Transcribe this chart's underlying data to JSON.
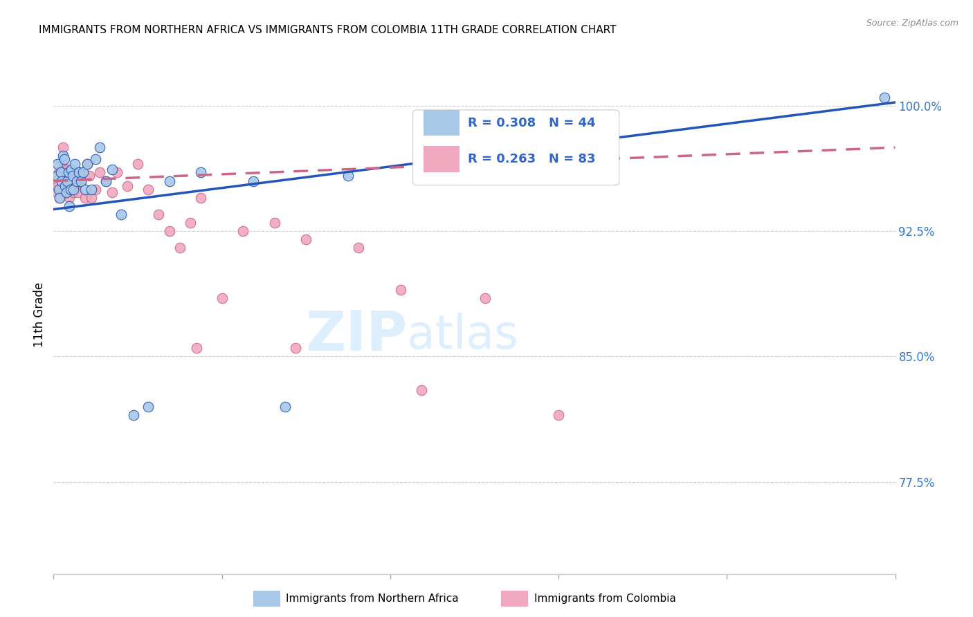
{
  "title": "IMMIGRANTS FROM NORTHERN AFRICA VS IMMIGRANTS FROM COLOMBIA 11TH GRADE CORRELATION CHART",
  "source": "Source: ZipAtlas.com",
  "ylabel": "11th Grade",
  "yticks": [
    77.5,
    85.0,
    92.5,
    100.0
  ],
  "ytick_labels": [
    "77.5%",
    "85.0%",
    "92.5%",
    "100.0%"
  ],
  "xlim": [
    0.0,
    40.0
  ],
  "ylim": [
    72.0,
    103.0
  ],
  "color_blue": "#a8c8e8",
  "color_pink": "#f0a8be",
  "line_blue": "#2255bb",
  "line_pink": "#cc6688",
  "watermark_zip": "ZIP",
  "watermark_atlas": "atlas",
  "watermark_color": "#ddeeff",
  "blue_x": [
    0.15,
    0.2,
    0.25,
    0.3,
    0.35,
    0.4,
    0.45,
    0.5,
    0.55,
    0.6,
    0.65,
    0.7,
    0.75,
    0.8,
    0.85,
    0.9,
    0.95,
    1.0,
    1.1,
    1.2,
    1.3,
    1.4,
    1.5,
    1.6,
    1.8,
    2.0,
    2.2,
    2.5,
    2.8,
    3.2,
    3.8,
    4.5,
    5.5,
    7.0,
    9.5,
    11.0,
    14.0,
    39.5
  ],
  "blue_y": [
    95.8,
    96.5,
    95.0,
    94.5,
    96.0,
    95.5,
    97.0,
    96.8,
    95.2,
    94.8,
    95.5,
    96.0,
    94.0,
    95.0,
    96.2,
    95.8,
    95.0,
    96.5,
    95.5,
    96.0,
    95.5,
    96.0,
    95.0,
    96.5,
    95.0,
    96.8,
    97.5,
    95.5,
    96.2,
    93.5,
    81.5,
    82.0,
    95.5,
    96.0,
    95.5,
    82.0,
    95.8,
    100.5
  ],
  "pink_x": [
    0.1,
    0.15,
    0.2,
    0.25,
    0.3,
    0.35,
    0.4,
    0.45,
    0.5,
    0.55,
    0.6,
    0.65,
    0.7,
    0.75,
    0.8,
    0.85,
    0.9,
    0.95,
    1.0,
    1.05,
    1.1,
    1.15,
    1.2,
    1.3,
    1.4,
    1.5,
    1.6,
    1.7,
    1.8,
    2.0,
    2.2,
    2.5,
    2.8,
    3.0,
    3.5,
    4.0,
    4.5,
    5.0,
    5.5,
    6.0,
    6.5,
    7.0,
    8.0,
    9.0,
    10.5,
    12.0,
    14.5,
    16.5,
    20.5,
    6.8,
    11.5,
    17.5,
    24.0
  ],
  "pink_y": [
    95.5,
    94.8,
    95.2,
    96.0,
    94.5,
    95.8,
    96.5,
    97.5,
    96.0,
    95.5,
    94.8,
    96.2,
    95.0,
    94.5,
    96.0,
    95.5,
    95.8,
    94.8,
    95.2,
    96.0,
    95.5,
    94.8,
    96.0,
    95.5,
    96.0,
    94.5,
    96.5,
    95.8,
    94.5,
    95.0,
    96.0,
    95.5,
    94.8,
    96.0,
    95.2,
    96.5,
    95.0,
    93.5,
    92.5,
    91.5,
    93.0,
    94.5,
    88.5,
    92.5,
    93.0,
    92.0,
    91.5,
    89.0,
    88.5,
    85.5,
    85.5,
    83.0,
    81.5
  ],
  "blue_trend_x": [
    0.0,
    40.0
  ],
  "blue_trend_y": [
    93.8,
    100.2
  ],
  "pink_trend_x": [
    0.0,
    40.0
  ],
  "pink_trend_y": [
    95.5,
    97.5
  ]
}
